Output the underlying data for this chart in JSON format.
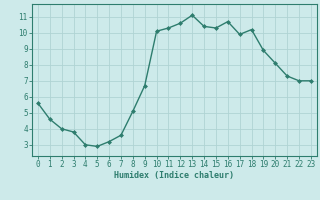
{
  "x": [
    0,
    1,
    2,
    3,
    4,
    5,
    6,
    7,
    8,
    9,
    10,
    11,
    12,
    13,
    14,
    15,
    16,
    17,
    18,
    19,
    20,
    21,
    22,
    23
  ],
  "y": [
    5.6,
    4.6,
    4.0,
    3.8,
    3.0,
    2.9,
    3.2,
    3.6,
    5.1,
    6.7,
    10.1,
    10.3,
    10.6,
    11.1,
    10.4,
    10.3,
    10.7,
    9.9,
    10.2,
    8.9,
    8.1,
    7.3,
    7.0,
    7.0
  ],
  "xlabel": "Humidex (Indice chaleur)",
  "line_color": "#2e7d6e",
  "marker": "D",
  "marker_size": 2,
  "bg_color": "#cdeaea",
  "grid_color": "#b0d4d4",
  "xlim": [
    -0.5,
    23.5
  ],
  "ylim": [
    2.3,
    11.8
  ],
  "yticks": [
    3,
    4,
    5,
    6,
    7,
    8,
    9,
    10,
    11
  ],
  "xticks": [
    0,
    1,
    2,
    3,
    4,
    5,
    6,
    7,
    8,
    9,
    10,
    11,
    12,
    13,
    14,
    15,
    16,
    17,
    18,
    19,
    20,
    21,
    22,
    23
  ],
  "xlabel_fontsize": 6,
  "tick_fontsize": 5.5,
  "linewidth": 1.0
}
